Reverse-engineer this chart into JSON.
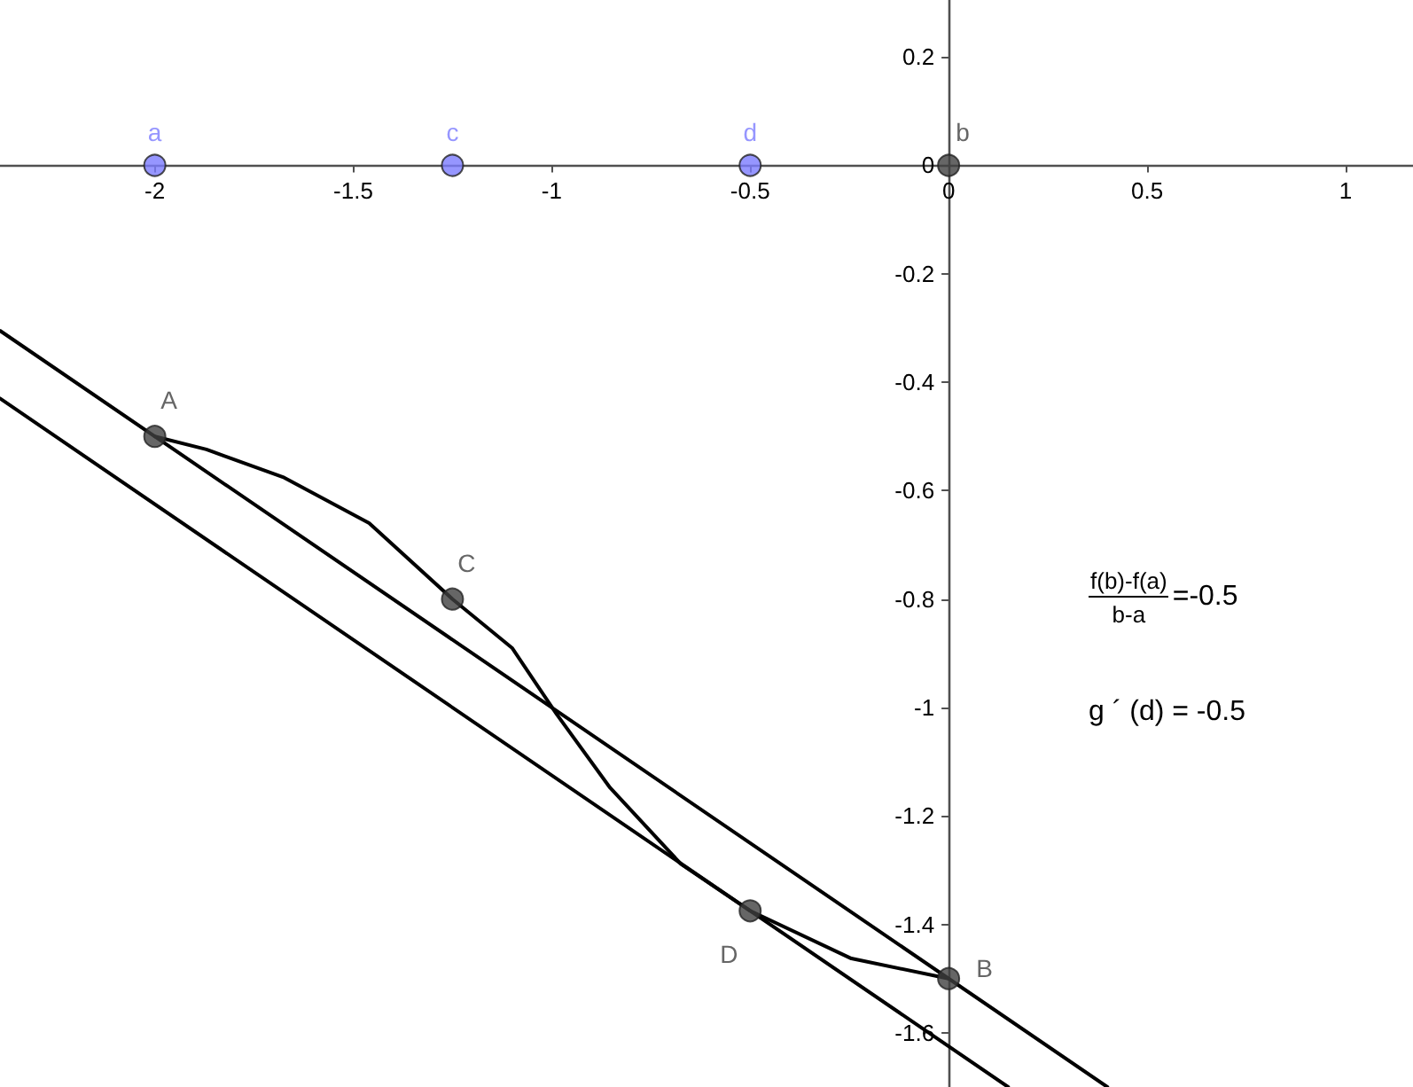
{
  "chart_data": {
    "type": "line",
    "xlim": [
      -2.39,
      1.17
    ],
    "ylim": [
      -1.7,
      0.305
    ],
    "xticks": [
      -2,
      -1.5,
      -1,
      -0.5,
      0,
      0.5,
      1
    ],
    "yticks": [
      0.2,
      0,
      -0.2,
      -0.4,
      -0.6,
      -0.8,
      -1,
      -1.2,
      -1.4,
      -1.6
    ],
    "grid": false,
    "line_style": "solid",
    "series": [
      {
        "type": "line",
        "marker": "none",
        "color": "#000000",
        "x": [
          -2,
          -1.87,
          -1.674,
          -1.46,
          -1.25,
          -1.1,
          -0.987,
          -0.853,
          -0.674,
          -0.5,
          -0.245,
          0
        ],
        "values": [
          -0.5,
          -0.524,
          -0.576,
          -0.66,
          -0.8,
          -0.89,
          -1.013,
          -1.148,
          -1.289,
          -1.375,
          -1.463,
          -1.5
        ]
      },
      {
        "type": "line",
        "marker": "none",
        "color": "#000000",
        "x": [
          -2.39,
          0.4
        ],
        "values": [
          -0.305,
          -1.7
        ]
      },
      {
        "type": "line",
        "marker": "none",
        "color": "#000000",
        "x": [
          -2.39,
          0.15
        ],
        "values": [
          -0.43,
          -1.7
        ]
      },
      {
        "type": "scatter",
        "marker": "circle",
        "color": "#404040",
        "x": [
          -2,
          -1.25,
          -0.5,
          0
        ],
        "values": [
          -0.5,
          -0.8,
          -1.375,
          -1.5
        ],
        "value_labels": [
          "A",
          "C",
          "D",
          "B"
        ]
      },
      {
        "type": "scatter",
        "marker": "circle",
        "color": "#7c7cff",
        "x": [
          -2,
          -1.25,
          -0.5
        ],
        "values": [
          0,
          0,
          0
        ],
        "value_labels": [
          "a",
          "c",
          "d"
        ]
      },
      {
        "type": "scatter",
        "marker": "circle",
        "color": "#404040",
        "x": [
          0
        ],
        "values": [
          0
        ],
        "value_labels": [
          "b"
        ]
      }
    ],
    "annotations": [
      "f(b)-f(a)",
      "b-a",
      "=-0.5",
      "g ´ (d) = -0.5"
    ]
  }
}
